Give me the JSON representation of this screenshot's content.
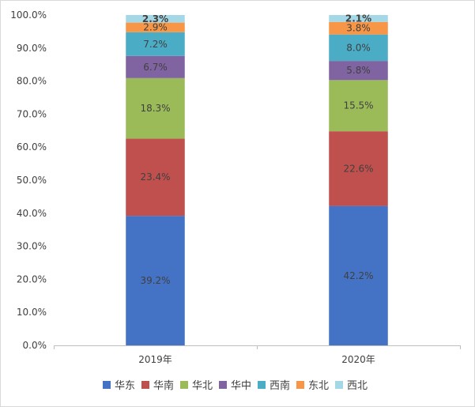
{
  "chart_data": {
    "type": "bar",
    "stacked": true,
    "categories": [
      "2019年",
      "2020年"
    ],
    "series": [
      {
        "name": "华东",
        "values": [
          39.2,
          42.2
        ],
        "color": "#4472c4",
        "labels": [
          "39.2%",
          "42.2%"
        ]
      },
      {
        "name": "华南",
        "values": [
          23.4,
          22.6
        ],
        "color": "#c0504d",
        "labels": [
          "23.4%",
          "22.6%"
        ]
      },
      {
        "name": "华北",
        "values": [
          18.3,
          15.5
        ],
        "color": "#9bbb59",
        "labels": [
          "18.3%",
          "15.5%"
        ]
      },
      {
        "name": "华中",
        "values": [
          6.7,
          5.8
        ],
        "color": "#8064a2",
        "labels": [
          "6.7%",
          "5.8%"
        ]
      },
      {
        "name": "西南",
        "values": [
          7.2,
          8.0
        ],
        "color": "#4bacc6",
        "labels": [
          "7.2%",
          "8.0%"
        ]
      },
      {
        "name": "东北",
        "values": [
          2.9,
          3.8
        ],
        "color": "#f79646",
        "labels": [
          "2.9%",
          "3.8%"
        ]
      },
      {
        "name": "西北",
        "values": [
          2.3,
          2.1
        ],
        "color": "#a5d8e6",
        "labels": [
          "2.3%",
          "2.1%"
        ]
      }
    ],
    "yticks": [
      "0.0%",
      "10.0%",
      "20.0%",
      "30.0%",
      "40.0%",
      "50.0%",
      "60.0%",
      "70.0%",
      "80.0%",
      "90.0%",
      "100.0%"
    ],
    "ylim": [
      0,
      100
    ],
    "grid": false,
    "legend": "bottom"
  }
}
